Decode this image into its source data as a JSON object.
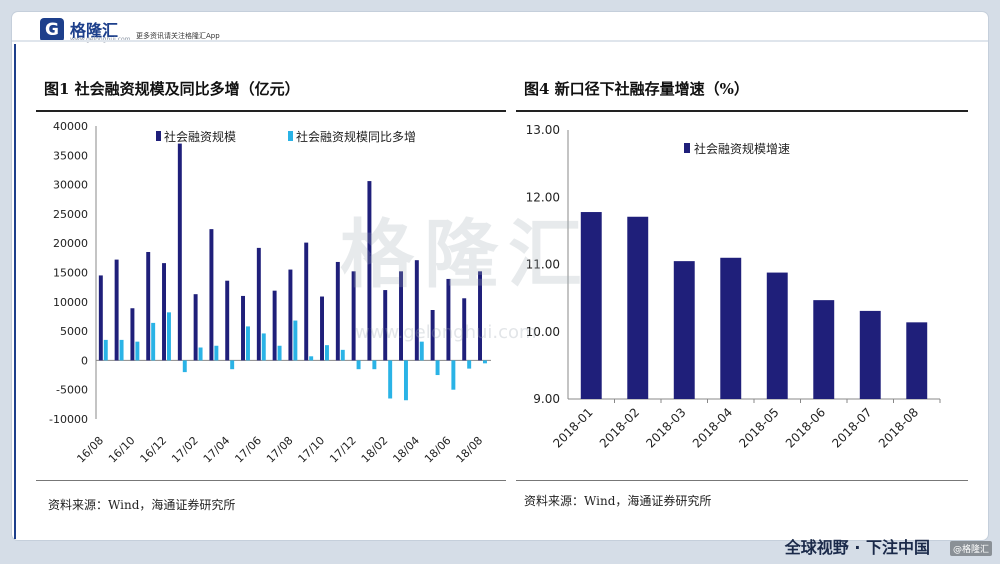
{
  "header": {
    "logo_letter": "G",
    "logo_text": "格隆汇",
    "logo_sub": "www.gelonghui.com",
    "slogan": "更多资讯请关注格隆汇App"
  },
  "watermark": {
    "text": "格隆汇",
    "url": "www.gelonghui.com"
  },
  "footer": {
    "slogan": "全球视野 · 下注中国",
    "mark": "@格隆汇"
  },
  "panels": {
    "left": {
      "title": "图1  社会融资规模及同比多增（亿元）",
      "source": "资料来源：Wind，海通证券研究所"
    },
    "right": {
      "title": "图4   新口径下社融存量增速（%）",
      "source": "资料来源：Wind，海通证券研究所"
    }
  },
  "colors": {
    "navy": "#1f1f7a",
    "cyan": "#2ab3e6"
  },
  "chart_data": [
    {
      "type": "bar",
      "categories": [
        "16/08",
        "16/09",
        "16/10",
        "16/11",
        "16/12",
        "17/01",
        "17/02",
        "17/03",
        "17/04",
        "17/05",
        "17/06",
        "17/07",
        "17/08",
        "17/09",
        "17/10",
        "17/11",
        "17/12",
        "18/01",
        "18/02",
        "18/03",
        "18/04",
        "18/05",
        "18/06",
        "18/07",
        "18/08"
      ],
      "tick_labels": [
        "16/08",
        "16/10",
        "16/12",
        "17/02",
        "17/04",
        "17/06",
        "17/08",
        "17/10",
        "17/12",
        "18/02",
        "18/04",
        "18/06",
        "18/08"
      ],
      "series": [
        {
          "name": "社会融资规模",
          "color": "#1f1f7a",
          "values": [
            14500,
            17200,
            8900,
            18500,
            16600,
            37000,
            11300,
            22400,
            13600,
            11000,
            19200,
            11900,
            15500,
            20100,
            10900,
            16800,
            15200,
            30600,
            12000,
            15200,
            17100,
            8600,
            13900,
            10600,
            15200
          ]
        },
        {
          "name": "社会融资规模同比多增",
          "color": "#2ab3e6",
          "values": [
            3500,
            3500,
            3200,
            6400,
            8200,
            -2000,
            2200,
            2500,
            -1500,
            5800,
            4600,
            2500,
            6800,
            700,
            2600,
            1800,
            -1500,
            -1500,
            -6500,
            -6800,
            3200,
            -2500,
            -5000,
            -1400,
            -500
          ]
        }
      ],
      "yticks": [
        -10000,
        -5000,
        0,
        5000,
        10000,
        15000,
        20000,
        25000,
        30000,
        35000,
        40000
      ],
      "ylim": [
        -10000,
        40000
      ],
      "legend": "top"
    },
    {
      "type": "bar",
      "categories": [
        "2018-01",
        "2018-02",
        "2018-03",
        "2018-04",
        "2018-05",
        "2018-06",
        "2018-07",
        "2018-08"
      ],
      "series": [
        {
          "name": "社会融资规模增速",
          "color": "#1f1f7a",
          "values": [
            11.78,
            11.71,
            11.05,
            11.1,
            10.88,
            10.47,
            10.31,
            10.14
          ]
        }
      ],
      "yticks": [
        "9.00",
        "10.00",
        "11.00",
        "12.00",
        "13.00"
      ],
      "ylim": [
        9,
        13
      ],
      "legend": "top"
    }
  ]
}
